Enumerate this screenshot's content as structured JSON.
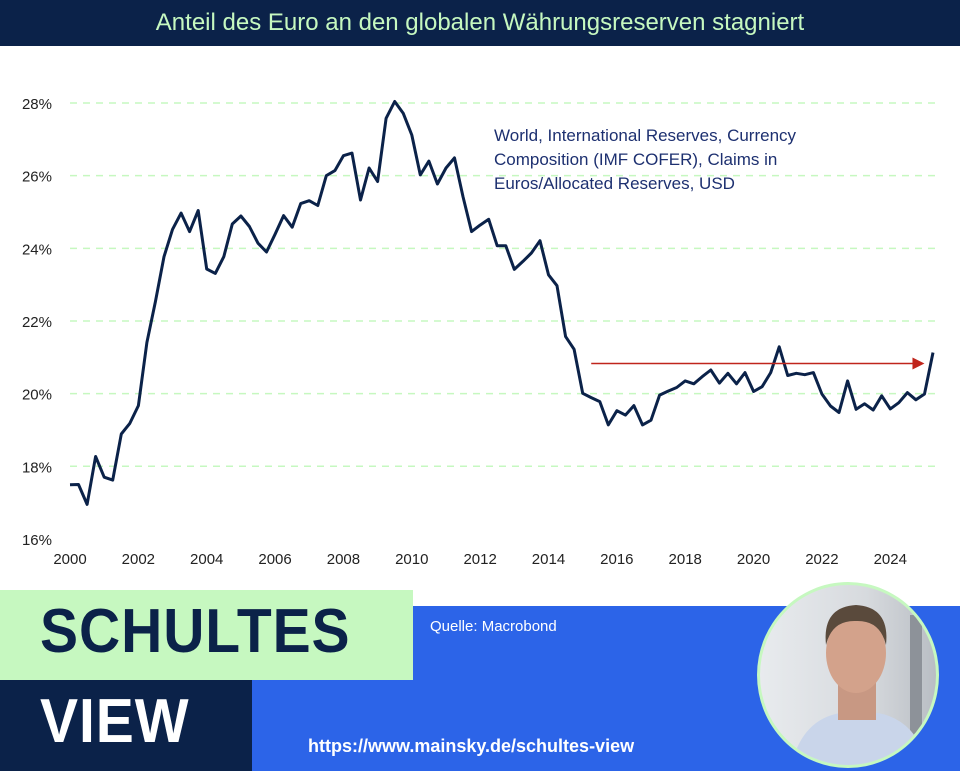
{
  "header": {
    "title": "Anteil des Euro an den globalen Währungsreserven stagniert"
  },
  "chart_data": {
    "type": "line",
    "title": "Anteil des Euro an den globalen Währungsreserven stagniert",
    "xlabel": "",
    "ylabel": "",
    "x_start": 2000.0,
    "x_step": 0.25,
    "xlim": [
      2000,
      2025.25
    ],
    "ylim": [
      16,
      28
    ],
    "yticks": [
      "16%",
      "18%",
      "20%",
      "22%",
      "24%",
      "26%",
      "28%"
    ],
    "ytick_values": [
      16,
      18,
      20,
      22,
      24,
      26,
      28
    ],
    "xticks": [
      "2000",
      "2002",
      "2004",
      "2006",
      "2008",
      "2010",
      "2012",
      "2014",
      "2016",
      "2018",
      "2020",
      "2022",
      "2024"
    ],
    "xtick_values": [
      2000,
      2002,
      2004,
      2006,
      2008,
      2010,
      2012,
      2014,
      2016,
      2018,
      2020,
      2022,
      2024
    ],
    "grid": "horizontal dashed",
    "series": [
      {
        "name": "World, International Reserves, Currency Composition (IMF COFER), Claims in Euros/Allocated Reserves, USD",
        "color": "#0b2249",
        "values": [
          17.49,
          17.5,
          16.95,
          18.27,
          17.7,
          17.62,
          18.89,
          19.18,
          19.67,
          21.41,
          22.53,
          23.77,
          24.52,
          24.97,
          24.46,
          25.04,
          23.43,
          23.31,
          23.77,
          24.67,
          24.89,
          24.6,
          24.14,
          23.9,
          24.39,
          24.9,
          24.58,
          25.23,
          25.31,
          25.18,
          26.0,
          26.14,
          26.55,
          26.62,
          25.33,
          26.21,
          25.84,
          27.58,
          28.04,
          27.72,
          27.12,
          26.02,
          26.4,
          25.77,
          26.21,
          26.49,
          25.42,
          24.46,
          24.64,
          24.8,
          24.07,
          24.07,
          23.42,
          23.64,
          23.87,
          24.21,
          23.27,
          22.97,
          21.57,
          21.22,
          20.01,
          19.89,
          19.78,
          19.14,
          19.53,
          19.41,
          19.67,
          19.14,
          19.27,
          19.96,
          20.07,
          20.17,
          20.35,
          20.27,
          20.47,
          20.65,
          20.29,
          20.56,
          20.27,
          20.58,
          20.06,
          20.19,
          20.58,
          21.29,
          20.5,
          20.56,
          20.52,
          20.58,
          19.99,
          19.66,
          19.48,
          20.35,
          19.57,
          19.72,
          19.55,
          19.94,
          19.58,
          19.75,
          20.03,
          19.83,
          19.99,
          21.13
        ]
      }
    ],
    "legend": {
      "text": "World, International Reserves, Currency Composition (IMF COFER), Claims in Euros/Allocated Reserves, USD",
      "placement": "top-right"
    },
    "annotations": [
      {
        "type": "arrow",
        "color": "#c0251c",
        "x_from": 2015.25,
        "x_to": 2025.0,
        "y": 20.83
      }
    ]
  },
  "footer": {
    "brand_line1": "SCHULTES",
    "brand_line2": "VIEW",
    "source": "Quelle: Macrobond",
    "url": "https://www.mainsky.de/schultes-view"
  }
}
